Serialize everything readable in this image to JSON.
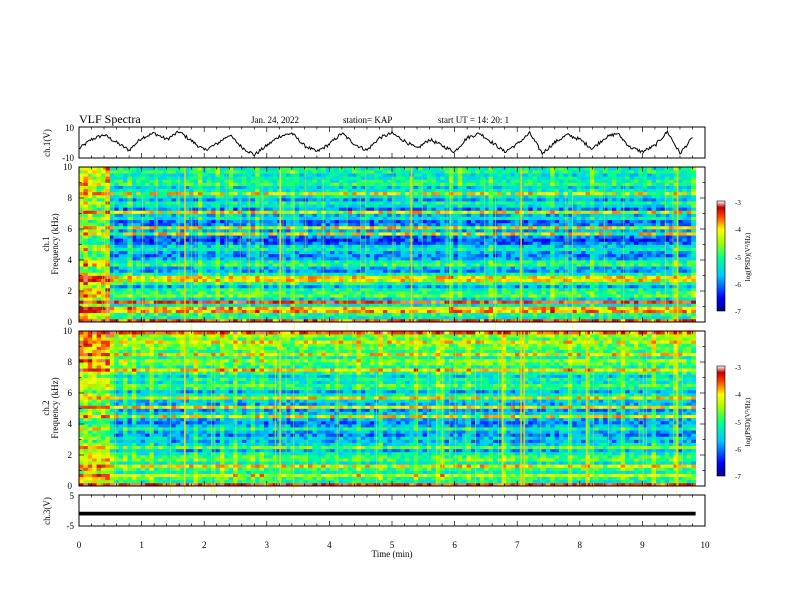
{
  "header": {
    "title": "VLF Spectra",
    "date": "Jan. 24, 2022",
    "station": "station= KAP",
    "start": "start  UT =   14: 20: 1"
  },
  "chart_data": [
    {
      "type": "line",
      "panel": "ch1-waveform",
      "ylabel": "ch.1(V)",
      "ytick_labels": [
        "10",
        "-10"
      ],
      "ylim": [
        -10,
        10
      ],
      "xlim": [
        0,
        10
      ],
      "series": [
        {
          "color": "#000000",
          "x": [
            0.0,
            0.2,
            0.4,
            0.6,
            0.8,
            1.0,
            1.2,
            1.4,
            1.6,
            1.8,
            2.0,
            2.2,
            2.4,
            2.6,
            2.8,
            3.0,
            3.2,
            3.4,
            3.6,
            3.8,
            4.0,
            4.2,
            4.4,
            4.6,
            4.8,
            5.0,
            5.2,
            5.4,
            5.6,
            5.8,
            6.0,
            6.2,
            6.4,
            6.6,
            6.8,
            7.0,
            7.2,
            7.4,
            7.6,
            7.8,
            8.0,
            8.2,
            8.4,
            8.6,
            8.8,
            9.0,
            9.2,
            9.4,
            9.6,
            9.8
          ],
          "y": [
            -4,
            2,
            5,
            0,
            -5,
            3,
            6,
            2,
            7,
            1,
            -5,
            -1,
            5,
            -3,
            -8,
            -2,
            4,
            6,
            -2,
            -6,
            -1,
            6,
            -1,
            -5,
            3,
            6,
            1,
            -4,
            2,
            -2,
            -6,
            3,
            6,
            0,
            -6,
            -1,
            6,
            -7,
            0,
            5,
            2,
            -4,
            3,
            6,
            -3,
            -6,
            -2,
            7,
            -7,
            3
          ]
        }
      ]
    },
    {
      "type": "heatmap",
      "panel": "ch1-spectrogram",
      "ylabel": "ch.1",
      "ylabel2": "Frequency (kHz)",
      "ytick_labels": [
        "0",
        "2",
        "4",
        "6",
        "8",
        "10"
      ],
      "ylim": [
        0,
        10
      ],
      "xlim": [
        0,
        10
      ],
      "data_extent_x": [
        0,
        9.85
      ],
      "colorbar": {
        "label": "log(PSD)(V²/Hz)",
        "range": [
          -7,
          -3
        ],
        "tick_labels": [
          "-3",
          "-4",
          "-5",
          "-6",
          "-7"
        ]
      },
      "row_levels": [
        0.85,
        0.42,
        0.47,
        0.78,
        0.75,
        0.4,
        0.88,
        0.36,
        0.55,
        0.5,
        0.45,
        0.3,
        0.48,
        0.62,
        0.64,
        0.43,
        0.28,
        0.33,
        0.5,
        0.45,
        0.3,
        0.25,
        0.3,
        0.42,
        0.35,
        0.22,
        0.18,
        0.25,
        0.48,
        0.3,
        0.55,
        0.26,
        0.22,
        0.4,
        0.32,
        0.55,
        0.24,
        0.38,
        0.45,
        0.28,
        0.4,
        0.52,
        0.42,
        0.35,
        0.5,
        0.45,
        0.42,
        0.38,
        0.48,
        0.44
      ],
      "bright_row_indices": [
        0,
        3,
        6,
        13,
        14,
        28,
        30,
        35,
        41
      ],
      "bright_line_times": [
        1.68,
        7.05,
        3.2,
        9.55,
        5.3
      ],
      "early_segment_end": 0.5
    },
    {
      "type": "heatmap",
      "panel": "ch2-spectrogram",
      "ylabel": "ch.2",
      "ylabel2": "Frequency (kHz)",
      "ytick_labels": [
        "0",
        "2",
        "4",
        "6",
        "8",
        "10"
      ],
      "ylim": [
        0,
        10
      ],
      "xlim": [
        0,
        10
      ],
      "data_extent_x": [
        0,
        9.85
      ],
      "colorbar": {
        "label": "log(PSD)(V²/Hz)",
        "range": [
          -7,
          -3
        ],
        "tick_labels": [
          "-3",
          "-4",
          "-5",
          "-6",
          "-7"
        ]
      },
      "row_levels": [
        0.88,
        0.45,
        0.5,
        0.65,
        0.42,
        0.52,
        0.62,
        0.4,
        0.55,
        0.5,
        0.42,
        0.3,
        0.55,
        0.38,
        0.28,
        0.36,
        0.26,
        0.3,
        0.45,
        0.3,
        0.24,
        0.3,
        0.52,
        0.36,
        0.28,
        0.62,
        0.3,
        0.35,
        0.58,
        0.42,
        0.3,
        0.44,
        0.52,
        0.4,
        0.45,
        0.35,
        0.48,
        0.7,
        0.45,
        0.55,
        0.6,
        0.45,
        0.62,
        0.5,
        0.55,
        0.58,
        0.62,
        0.55,
        0.6,
        0.82
      ],
      "bright_row_indices": [
        0,
        6,
        22,
        25,
        28,
        37,
        42,
        46,
        49
      ],
      "bright_line_times": [
        1.68,
        7.05,
        7.1,
        3.2,
        9.55,
        6.75,
        8.1
      ],
      "early_segment_end": 0.5
    },
    {
      "type": "line",
      "panel": "ch3-signal",
      "ylabel": "ch.3(V)",
      "ytick_labels": [
        "5",
        "-5"
      ],
      "ylim": [
        -5,
        5
      ],
      "xlim": [
        0,
        10
      ],
      "xlabel": "Time  (min)",
      "xtick_labels": [
        "0",
        "1",
        "2",
        "3",
        "4",
        "5",
        "6",
        "7",
        "8",
        "9",
        "10"
      ],
      "series": [
        {
          "color": "#000000",
          "x": [
            0,
            9.85
          ],
          "y": [
            -1,
            -1
          ],
          "band": [
            -1.6,
            -0.4
          ]
        }
      ]
    }
  ]
}
